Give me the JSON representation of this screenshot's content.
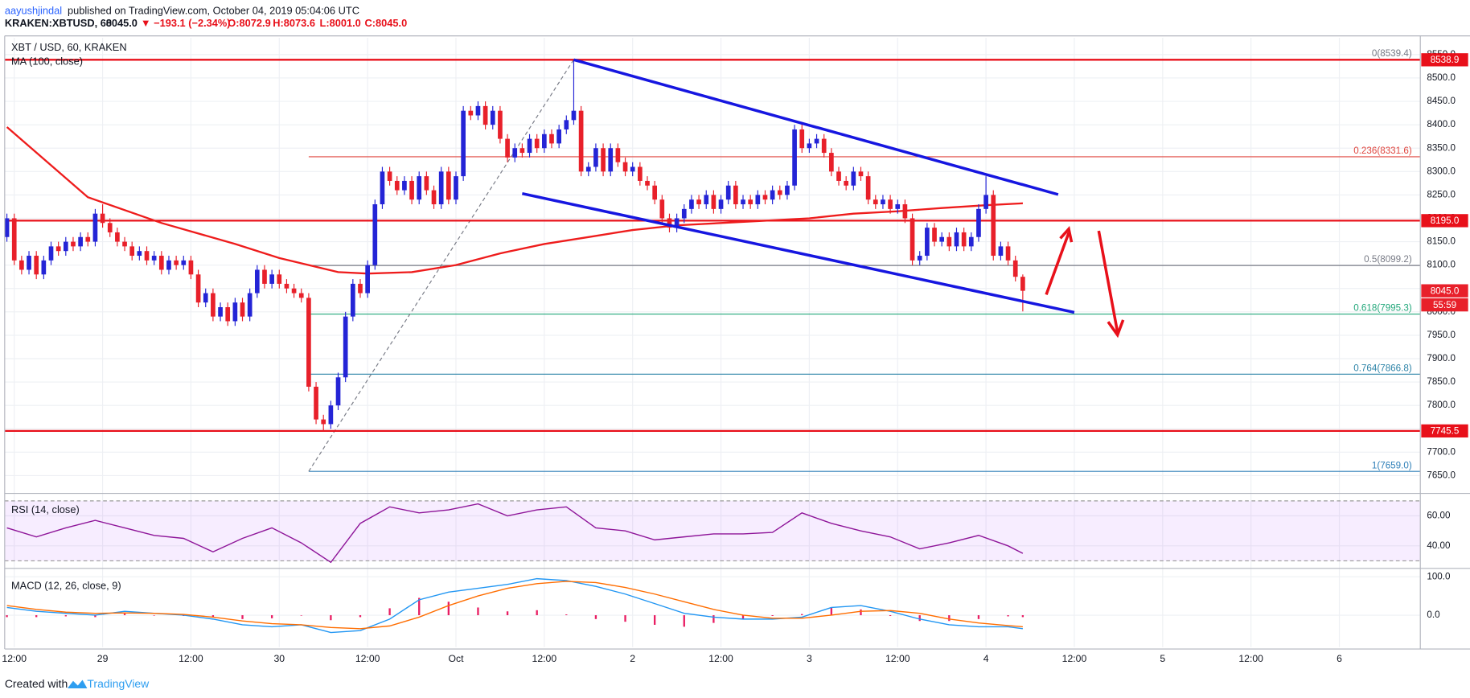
{
  "header": {
    "publisher": "aayushjindal",
    "published": "published on TradingView.com, October 04, 2019 05:04:06 UTC",
    "symbol": "KRAKEN:XBTUSD, 60",
    "price": "8045.0",
    "change": "▼ −193.1 (−2.34%)",
    "open": "O:8072.9",
    "high": "H:8073.6",
    "low": "L:8001.0",
    "close": "C:8045.0"
  },
  "footer": {
    "created": "Created with",
    "brand": "TradingView"
  },
  "chart_data": [
    {
      "type": "candlestick",
      "title": "XBT / USD, 60, KRAKEN",
      "up_color": "#2424d6",
      "down_color": "#e8202a",
      "x": [
        -1,
        0,
        1,
        2,
        3,
        4,
        5,
        6,
        7,
        8,
        9,
        10,
        11,
        12,
        13,
        14,
        15,
        16,
        17,
        18,
        19,
        20,
        21,
        22,
        23,
        24,
        25,
        26,
        27,
        28,
        29,
        30,
        31,
        32,
        33,
        34,
        35,
        36,
        37,
        38,
        39,
        40,
        41,
        42,
        43,
        44,
        45,
        46,
        47,
        48,
        49,
        50,
        51,
        52,
        53,
        54,
        55,
        56,
        57,
        58,
        59,
        60,
        61,
        62,
        63,
        64,
        65,
        66,
        67,
        68,
        69,
        70,
        71,
        72,
        73,
        74,
        75,
        76,
        77,
        78,
        79,
        80,
        81,
        82,
        83,
        84,
        85,
        86,
        87,
        88,
        89,
        90,
        91,
        92,
        93,
        94,
        95,
        96,
        97,
        98,
        99,
        100,
        101,
        102,
        103,
        104,
        105,
        106,
        107,
        108,
        109,
        110,
        111,
        112,
        113,
        114,
        115,
        116,
        117,
        118,
        119,
        120,
        121,
        122,
        123,
        124,
        125,
        126,
        127,
        128,
        129,
        130,
        131,
        132,
        133,
        134,
        135,
        136,
        137
      ],
      "open": [
        8160,
        8200,
        8110,
        8090,
        8120,
        8080,
        8110,
        8140,
        8130,
        8150,
        8140,
        8160,
        8150,
        8210,
        8190,
        8170,
        8150,
        8140,
        8120,
        8130,
        8110,
        8120,
        8090,
        8110,
        8100,
        8110,
        8080,
        8020,
        8040,
        7990,
        8010,
        7980,
        8020,
        7990,
        8040,
        8090,
        8060,
        8080,
        8060,
        8050,
        8040,
        8030,
        7840,
        7770,
        7760,
        7800,
        7860,
        7990,
        8060,
        8040,
        8100,
        8230,
        8300,
        8280,
        8260,
        8280,
        8240,
        8290,
        8260,
        8230,
        8300,
        8240,
        8290,
        8430,
        8420,
        8440,
        8400,
        8430,
        8370,
        8330,
        8350,
        8340,
        8370,
        8350,
        8380,
        8360,
        8390,
        8410,
        8430,
        8300,
        8310,
        8350,
        8300,
        8350,
        8320,
        8300,
        8310,
        8280,
        8270,
        8240,
        8200,
        8180,
        8200,
        8220,
        8240,
        8230,
        8250,
        8220,
        8240,
        8270,
        8230,
        8240,
        8230,
        8250,
        8240,
        8260,
        8250,
        8270,
        8390,
        8350,
        8360,
        8370,
        8340,
        8300,
        8280,
        8270,
        8300,
        8290,
        8240,
        8230,
        8240,
        8220,
        8230,
        8200,
        8110,
        8120,
        8180,
        8150,
        8160,
        8140,
        8170,
        8140,
        8160,
        8220,
        8250,
        8120,
        8140,
        8110,
        8075
      ],
      "high": [
        8210,
        8210,
        8120,
        8130,
        8130,
        8120,
        8150,
        8150,
        8160,
        8160,
        8170,
        8170,
        8220,
        8230,
        8200,
        8180,
        8160,
        8150,
        8140,
        8140,
        8130,
        8130,
        8120,
        8120,
        8120,
        8120,
        8090,
        8050,
        8050,
        8020,
        8020,
        8030,
        8030,
        8050,
        8100,
        8100,
        8090,
        8090,
        8070,
        8060,
        8050,
        8040,
        7850,
        7780,
        7810,
        7870,
        8000,
        8070,
        8070,
        8110,
        8240,
        8310,
        8310,
        8290,
        8290,
        8290,
        8300,
        8300,
        8270,
        8310,
        8310,
        8300,
        8440,
        8440,
        8450,
        8450,
        8440,
        8440,
        8380,
        8360,
        8360,
        8380,
        8380,
        8390,
        8390,
        8400,
        8420,
        8539,
        8440,
        8320,
        8360,
        8360,
        8360,
        8360,
        8330,
        8320,
        8320,
        8290,
        8280,
        8250,
        8210,
        8210,
        8230,
        8250,
        8250,
        8260,
        8260,
        8250,
        8280,
        8280,
        8250,
        8250,
        8260,
        8260,
        8270,
        8270,
        8280,
        8400,
        8400,
        8370,
        8380,
        8380,
        8350,
        8310,
        8290,
        8310,
        8310,
        8300,
        8250,
        8250,
        8250,
        8240,
        8240,
        8210,
        8130,
        8190,
        8190,
        8170,
        8170,
        8180,
        8180,
        8170,
        8230,
        8290,
        8260,
        8150,
        8150,
        8120,
        8080
      ],
      "low": [
        8150,
        8100,
        8080,
        8080,
        8070,
        8070,
        8100,
        8120,
        8120,
        8130,
        8130,
        8140,
        8140,
        8180,
        8160,
        8140,
        8130,
        8110,
        8110,
        8100,
        8100,
        8080,
        8080,
        8090,
        8090,
        8070,
        8010,
        8010,
        7980,
        7980,
        7970,
        7970,
        7980,
        7980,
        8030,
        8050,
        8050,
        8050,
        8040,
        8030,
        8020,
        7830,
        7760,
        7745,
        7750,
        7790,
        7850,
        7980,
        8030,
        8030,
        8090,
        8220,
        8270,
        8250,
        8250,
        8230,
        8230,
        8250,
        8220,
        8220,
        8230,
        8230,
        8280,
        8410,
        8410,
        8390,
        8390,
        8360,
        8320,
        8320,
        8330,
        8330,
        8340,
        8340,
        8350,
        8350,
        8380,
        8400,
        8290,
        8290,
        8300,
        8290,
        8290,
        8310,
        8290,
        8290,
        8270,
        8260,
        8230,
        8190,
        8170,
        8170,
        8190,
        8210,
        8220,
        8220,
        8210,
        8210,
        8230,
        8220,
        8220,
        8220,
        8220,
        8230,
        8230,
        8240,
        8240,
        8260,
        8340,
        8340,
        8350,
        8330,
        8290,
        8270,
        8260,
        8260,
        8280,
        8230,
        8220,
        8220,
        8210,
        8210,
        8190,
        8100,
        8100,
        8110,
        8140,
        8140,
        8130,
        8130,
        8130,
        8130,
        8150,
        8210,
        8110,
        8110,
        8100,
        8065,
        8001
      ],
      "close": [
        8200,
        8110,
        8090,
        8120,
        8080,
        8110,
        8140,
        8130,
        8150,
        8140,
        8160,
        8150,
        8210,
        8190,
        8170,
        8150,
        8140,
        8120,
        8130,
        8110,
        8120,
        8090,
        8110,
        8100,
        8110,
        8080,
        8020,
        8040,
        7990,
        8010,
        7980,
        8020,
        7990,
        8040,
        8090,
        8060,
        8080,
        8060,
        8050,
        8040,
        8030,
        7840,
        7770,
        7760,
        7800,
        7860,
        7990,
        8060,
        8040,
        8100,
        8230,
        8300,
        8280,
        8260,
        8280,
        8240,
        8290,
        8260,
        8230,
        8300,
        8240,
        8290,
        8430,
        8420,
        8440,
        8400,
        8430,
        8370,
        8330,
        8350,
        8340,
        8370,
        8350,
        8380,
        8360,
        8390,
        8410,
        8430,
        8300,
        8310,
        8350,
        8300,
        8350,
        8320,
        8300,
        8310,
        8280,
        8270,
        8240,
        8200,
        8180,
        8200,
        8220,
        8240,
        8230,
        8250,
        8220,
        8240,
        8270,
        8230,
        8240,
        8230,
        8250,
        8240,
        8260,
        8250,
        8270,
        8390,
        8350,
        8360,
        8370,
        8340,
        8300,
        8280,
        8270,
        8300,
        8290,
        8240,
        8230,
        8240,
        8220,
        8230,
        8200,
        8110,
        8120,
        8180,
        8150,
        8160,
        8140,
        8170,
        8140,
        8160,
        8220,
        8250,
        8120,
        8140,
        8110,
        8075,
        8045
      ],
      "indicator": {
        "label": "MA (100, close)",
        "color": "#ee1c1c",
        "x": [
          -1,
          10,
          20,
          30,
          36,
          40,
          44,
          48,
          54,
          60,
          66,
          72,
          78,
          84,
          90,
          96,
          102,
          108,
          114,
          120,
          126,
          132,
          137
        ],
        "values": [
          8395,
          8245,
          8190,
          8145,
          8115,
          8100,
          8085,
          8082,
          8085,
          8100,
          8125,
          8145,
          8160,
          8175,
          8185,
          8190,
          8195,
          8200,
          8210,
          8215,
          8222,
          8228,
          8232
        ]
      },
      "levels": [
        {
          "value": 8538.9,
          "label": "8538.9"
        },
        {
          "value": 8195.0,
          "label": "8195.0"
        },
        {
          "value": 7745.5,
          "label": "7745.5"
        }
      ],
      "level_color": "#e8101a",
      "fib_anchor": {
        "x": [
          40,
          76
        ],
        "values": [
          7659.0,
          8539.4
        ]
      },
      "fib": [
        {
          "value": 8539.4,
          "label": "0(8539.4)",
          "color": "#787b86"
        },
        {
          "value": 8331.6,
          "label": "0.236(8331.6)",
          "color": "#e0463f"
        },
        {
          "value": 8099.2,
          "label": "0.5(8099.2)",
          "color": "#787b86"
        },
        {
          "value": 7995.3,
          "label": "0.618(7995.3)",
          "color": "#22a77a"
        },
        {
          "value": 7866.8,
          "label": "0.764(7866.8)",
          "color": "#2e84a8"
        },
        {
          "value": 7659.0,
          "label": "1(7659.0)",
          "color": "#2e7fb8"
        }
      ],
      "trendlines": [
        {
          "x": [
            76,
            141.8
          ],
          "values": [
            8539,
            8251
          ]
        },
        {
          "x": [
            69,
            144
          ],
          "values": [
            8253,
            7999
          ]
        }
      ],
      "trend_color": "#1616e0",
      "last_price": {
        "value": 8045.0,
        "label": "8045.0"
      },
      "countdown": "55:59",
      "xlim": [
        -1.3,
        191
      ],
      "xticks": [
        {
          "value": 0,
          "label": "12:00"
        },
        {
          "value": 12,
          "label": "29"
        },
        {
          "value": 24,
          "label": "12:00"
        },
        {
          "value": 36,
          "label": "30"
        },
        {
          "value": 48,
          "label": "12:00"
        },
        {
          "value": 60,
          "label": "Oct"
        },
        {
          "value": 72,
          "label": "12:00"
        },
        {
          "value": 84,
          "label": "2"
        },
        {
          "value": 96,
          "label": "12:00"
        },
        {
          "value": 108,
          "label": "3"
        },
        {
          "value": 120,
          "label": "12:00"
        },
        {
          "value": 132,
          "label": "4"
        },
        {
          "value": 144,
          "label": "12:00"
        },
        {
          "value": 156,
          "label": "5"
        },
        {
          "value": 168,
          "label": "12:00"
        },
        {
          "value": 180,
          "label": "6"
        }
      ],
      "ylim": [
        7620,
        8586
      ],
      "yticks": [
        {
          "value": 7650,
          "label": "7650.0"
        },
        {
          "value": 7700,
          "label": "7700.0"
        },
        {
          "value": 7750,
          "label": "7750.0"
        },
        {
          "value": 7800,
          "label": "7800.0"
        },
        {
          "value": 7850,
          "label": "7850.0"
        },
        {
          "value": 7900,
          "label": "7900.0"
        },
        {
          "value": 7950,
          "label": "7950.0"
        },
        {
          "value": 8000,
          "label": "8000.0"
        },
        {
          "value": 8050,
          "label": "8050.0"
        },
        {
          "value": 8100,
          "label": "8100.0"
        },
        {
          "value": 8150,
          "label": "8150.0"
        },
        {
          "value": 8200,
          "label": "8200.0"
        },
        {
          "value": 8250,
          "label": "8250.0"
        },
        {
          "value": 8300,
          "label": "8300.0"
        },
        {
          "value": 8350,
          "label": "8350.0"
        },
        {
          "value": 8400,
          "label": "8400.0"
        },
        {
          "value": 8450,
          "label": "8450.0"
        },
        {
          "value": 8500,
          "label": "8500.0"
        },
        {
          "value": 8550,
          "label": "8550.0"
        }
      ],
      "grid": true
    },
    {
      "type": "line",
      "title": "RSI (14, close)",
      "color": "#8e1599",
      "band": [
        30,
        70
      ],
      "x": [
        -1,
        3,
        7,
        11,
        15,
        19,
        23,
        27,
        31,
        35,
        39,
        43,
        47,
        51,
        55,
        59,
        63,
        67,
        71,
        75,
        79,
        83,
        87,
        91,
        95,
        99,
        103,
        107,
        111,
        115,
        119,
        123,
        127,
        131,
        135,
        137
      ],
      "values": [
        52,
        46,
        52,
        57,
        52,
        47,
        45,
        36,
        45,
        52,
        42,
        29,
        55,
        66,
        62,
        64,
        68,
        60,
        64,
        66,
        52,
        50,
        44,
        46,
        48,
        48,
        49,
        62,
        55,
        50,
        46,
        38,
        42,
        47,
        40,
        35
      ],
      "ylim": [
        27.5,
        72.5
      ],
      "yticks": [
        {
          "value": 40,
          "label": "40.00"
        },
        {
          "value": 60,
          "label": "60.00"
        }
      ]
    },
    {
      "type": "macd",
      "title": "MACD (12, 26, close, 9)",
      "x": [
        -1,
        3,
        7,
        11,
        15,
        19,
        23,
        27,
        31,
        35,
        39,
        43,
        47,
        51,
        55,
        59,
        63,
        67,
        71,
        75,
        79,
        83,
        87,
        91,
        95,
        99,
        103,
        107,
        111,
        115,
        119,
        123,
        127,
        131,
        135,
        137
      ],
      "series": [
        {
          "color": "#2196f3",
          "values": [
            20,
            10,
            5,
            0,
            10,
            5,
            0,
            -10,
            -25,
            -30,
            -25,
            -45,
            -40,
            -10,
            40,
            60,
            70,
            80,
            95,
            90,
            75,
            55,
            30,
            5,
            -5,
            -10,
            -10,
            -5,
            20,
            25,
            10,
            -10,
            -25,
            -30,
            -30,
            -35
          ]
        },
        {
          "color": "#ff6d00",
          "values": [
            25,
            15,
            8,
            5,
            6,
            5,
            2,
            -5,
            -15,
            -22,
            -25,
            -32,
            -35,
            -28,
            -5,
            25,
            50,
            70,
            82,
            88,
            85,
            72,
            55,
            35,
            15,
            0,
            -8,
            -8,
            0,
            10,
            12,
            5,
            -10,
            -20,
            -27,
            -30
          ]
        }
      ],
      "histogram": {
        "color": "#e91e63",
        "values": [
          -5,
          -5,
          -3,
          -5,
          4,
          0,
          -2,
          -5,
          -10,
          -8,
          0,
          -13,
          -5,
          18,
          45,
          35,
          20,
          10,
          13,
          2,
          -10,
          -17,
          -25,
          -30,
          -20,
          -10,
          -2,
          3,
          20,
          15,
          -2,
          -15,
          -15,
          -10,
          -3,
          -5
        ]
      },
      "ylim": [
        -83,
        112
      ],
      "yticks": [
        {
          "value": 0,
          "label": "0.0"
        },
        {
          "value": 100,
          "label": "100.0"
        }
      ]
    }
  ]
}
